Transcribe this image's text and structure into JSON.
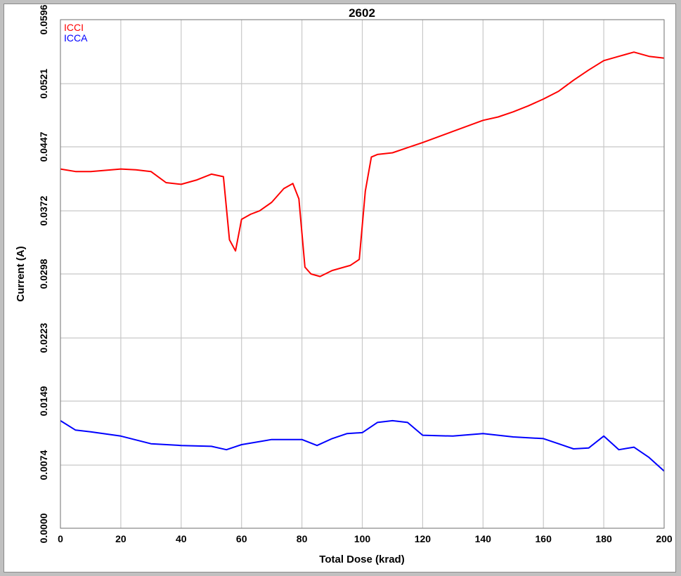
{
  "chart_data": {
    "type": "line",
    "title": "2602",
    "xlabel": "Total Dose (krad)",
    "ylabel": "Current (A)",
    "xlim": [
      0,
      200
    ],
    "ylim": [
      0.0,
      0.0596
    ],
    "x_ticks": [
      0,
      20,
      40,
      60,
      80,
      100,
      120,
      140,
      160,
      180,
      200
    ],
    "y_ticks": [
      "0.0000",
      "0.0074",
      "0.0149",
      "0.0223",
      "0.0298",
      "0.0372",
      "0.0447",
      "0.0521",
      "0.0596"
    ],
    "grid": true,
    "legend_position": "top-left",
    "series": [
      {
        "name": "ICCI",
        "color": "#ff0000",
        "x": [
          0,
          5,
          10,
          20,
          25,
          30,
          35,
          40,
          45,
          50,
          54,
          56,
          58,
          60,
          63,
          66,
          70,
          74,
          77,
          79,
          81,
          83,
          86,
          90,
          93,
          96,
          99,
          101,
          103,
          105,
          110,
          115,
          120,
          130,
          140,
          145,
          150,
          155,
          160,
          165,
          170,
          175,
          180,
          185,
          190,
          195,
          200
        ],
        "y": [
          0.0421,
          0.0418,
          0.0418,
          0.0421,
          0.042,
          0.0418,
          0.0405,
          0.0403,
          0.0408,
          0.0415,
          0.0412,
          0.0338,
          0.0325,
          0.0362,
          0.0368,
          0.0372,
          0.0382,
          0.0398,
          0.0404,
          0.0386,
          0.0306,
          0.0298,
          0.0295,
          0.0302,
          0.0305,
          0.0308,
          0.0315,
          0.0395,
          0.0435,
          0.0438,
          0.044,
          0.0446,
          0.0452,
          0.0465,
          0.0478,
          0.0482,
          0.0488,
          0.0495,
          0.0503,
          0.0512,
          0.0525,
          0.0537,
          0.0548,
          0.0553,
          0.0558,
          0.0553,
          0.0551
        ]
      },
      {
        "name": "ICCA",
        "color": "#0000ff",
        "x": [
          0,
          5,
          10,
          20,
          30,
          40,
          50,
          55,
          60,
          70,
          80,
          85,
          90,
          95,
          100,
          105,
          110,
          115,
          120,
          130,
          140,
          150,
          160,
          165,
          170,
          175,
          180,
          185,
          190,
          195,
          200
        ],
        "y": [
          0.0126,
          0.0115,
          0.0113,
          0.0108,
          0.0099,
          0.0097,
          0.0096,
          0.0092,
          0.0098,
          0.0104,
          0.0104,
          0.0097,
          0.0105,
          0.0111,
          0.0112,
          0.0124,
          0.0126,
          0.0124,
          0.0109,
          0.0108,
          0.0111,
          0.0107,
          0.0105,
          0.0099,
          0.0093,
          0.0094,
          0.0108,
          0.0092,
          0.0095,
          0.0083,
          0.0067
        ]
      }
    ]
  }
}
